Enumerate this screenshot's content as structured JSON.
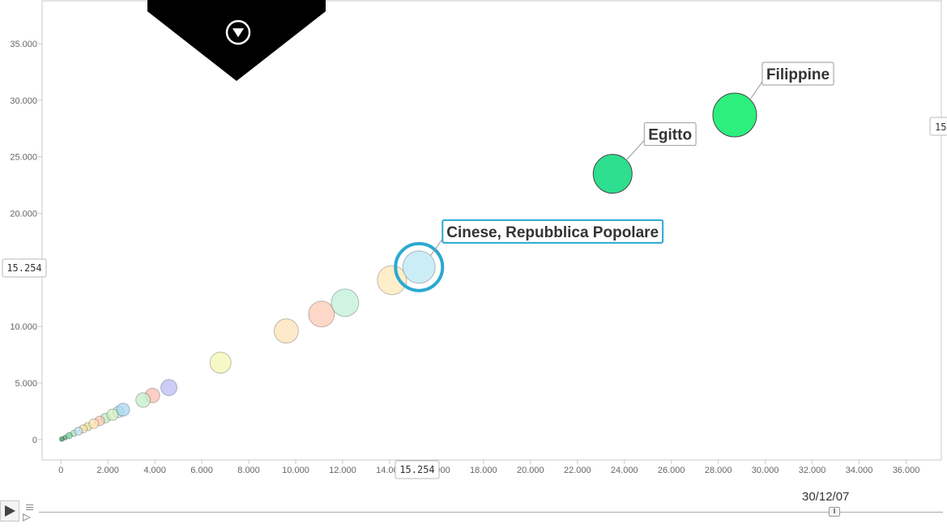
{
  "chart_data": {
    "type": "scatter",
    "subtype": "bubble",
    "x_ticks": [
      "0",
      "2.000",
      "4.000",
      "6.000",
      "8.000",
      "10.000",
      "12.000",
      "14.000",
      "16.000",
      "18.000",
      "20.000",
      "22.000",
      "24.000",
      "26.000",
      "28.000",
      "30.000",
      "32.000",
      "34.000",
      "36.000"
    ],
    "y_ticks": [
      "0",
      "5.000",
      "10.000",
      "15.000",
      "20.000",
      "25.000",
      "30.000",
      "35.000"
    ],
    "xlim": [
      -800,
      37500
    ],
    "ylim": [
      -1800,
      38800
    ],
    "grid": true,
    "points": [
      {
        "name": "Filippine",
        "x": 28700,
        "y": 28700,
        "r": 27,
        "color": "#22ee77",
        "labeled": true,
        "label_dx": 40,
        "label_dy": -50
      },
      {
        "name": "Egitto",
        "x": 23500,
        "y": 23500,
        "r": 24,
        "color": "#22dd88",
        "labeled": true,
        "label_dx": 45,
        "label_dy": -48
      },
      {
        "name": "Cinese, Repubblica Popolare",
        "x": 15254,
        "y": 15254,
        "r": 20,
        "color": "#c8ecf6",
        "labeled": true,
        "selected": true,
        "label_dx": 35,
        "label_dy": -43
      },
      {
        "name": "",
        "x": 14100,
        "y": 14100,
        "r": 18,
        "color": "#fde8b8"
      },
      {
        "name": "",
        "x": 12100,
        "y": 12100,
        "r": 17,
        "color": "#bff0d8"
      },
      {
        "name": "",
        "x": 11100,
        "y": 11100,
        "r": 16,
        "color": "#fcc9b4"
      },
      {
        "name": "",
        "x": 9600,
        "y": 9600,
        "r": 15,
        "color": "#fde2b8"
      },
      {
        "name": "",
        "x": 6800,
        "y": 6800,
        "r": 13,
        "color": "#f3f7b2"
      },
      {
        "name": "",
        "x": 4600,
        "y": 4600,
        "r": 10,
        "color": "#b9bcf4"
      },
      {
        "name": "",
        "x": 3900,
        "y": 3900,
        "r": 9,
        "color": "#fcbcb4"
      },
      {
        "name": "",
        "x": 3500,
        "y": 3500,
        "r": 9,
        "color": "#c3edc8"
      },
      {
        "name": "",
        "x": 2650,
        "y": 2650,
        "r": 8,
        "color": "#a8d6f2"
      },
      {
        "name": "",
        "x": 2450,
        "y": 2450,
        "r": 7,
        "color": "#bce8e0"
      },
      {
        "name": "",
        "x": 2200,
        "y": 2200,
        "r": 7,
        "color": "#d0f0c0"
      },
      {
        "name": "",
        "x": 1900,
        "y": 1900,
        "r": 6,
        "color": "#bdebc6"
      },
      {
        "name": "",
        "x": 1650,
        "y": 1650,
        "r": 6,
        "color": "#fcc5b0"
      },
      {
        "name": "",
        "x": 1400,
        "y": 1400,
        "r": 6,
        "color": "#fde0b0"
      },
      {
        "name": "",
        "x": 1150,
        "y": 1150,
        "r": 5,
        "color": "#e5e5a0"
      },
      {
        "name": "",
        "x": 950,
        "y": 950,
        "r": 5,
        "color": "#f5e2a8"
      },
      {
        "name": "",
        "x": 750,
        "y": 750,
        "r": 5,
        "color": "#b8e0f0"
      },
      {
        "name": "",
        "x": 550,
        "y": 550,
        "r": 4,
        "color": "#a8e6b8"
      },
      {
        "name": "",
        "x": 350,
        "y": 350,
        "r": 4,
        "color": "#70c8a0"
      },
      {
        "name": "",
        "x": 180,
        "y": 180,
        "r": 3,
        "color": "#5aa877"
      },
      {
        "name": "",
        "x": 40,
        "y": 40,
        "r": 3,
        "color": "#3a9060"
      }
    ]
  },
  "readouts": {
    "x_value": "15.254",
    "y_value": "15.254",
    "right_value": "15"
  },
  "timeline": {
    "date": "30/12/07",
    "position": 0.88,
    "play_icon": "play-icon",
    "settings_icon": "settings-icon"
  },
  "colors": {
    "selected_ring": "#2aa9d0",
    "grid": "#e6e6e6",
    "axis": "#c8c8c8"
  }
}
